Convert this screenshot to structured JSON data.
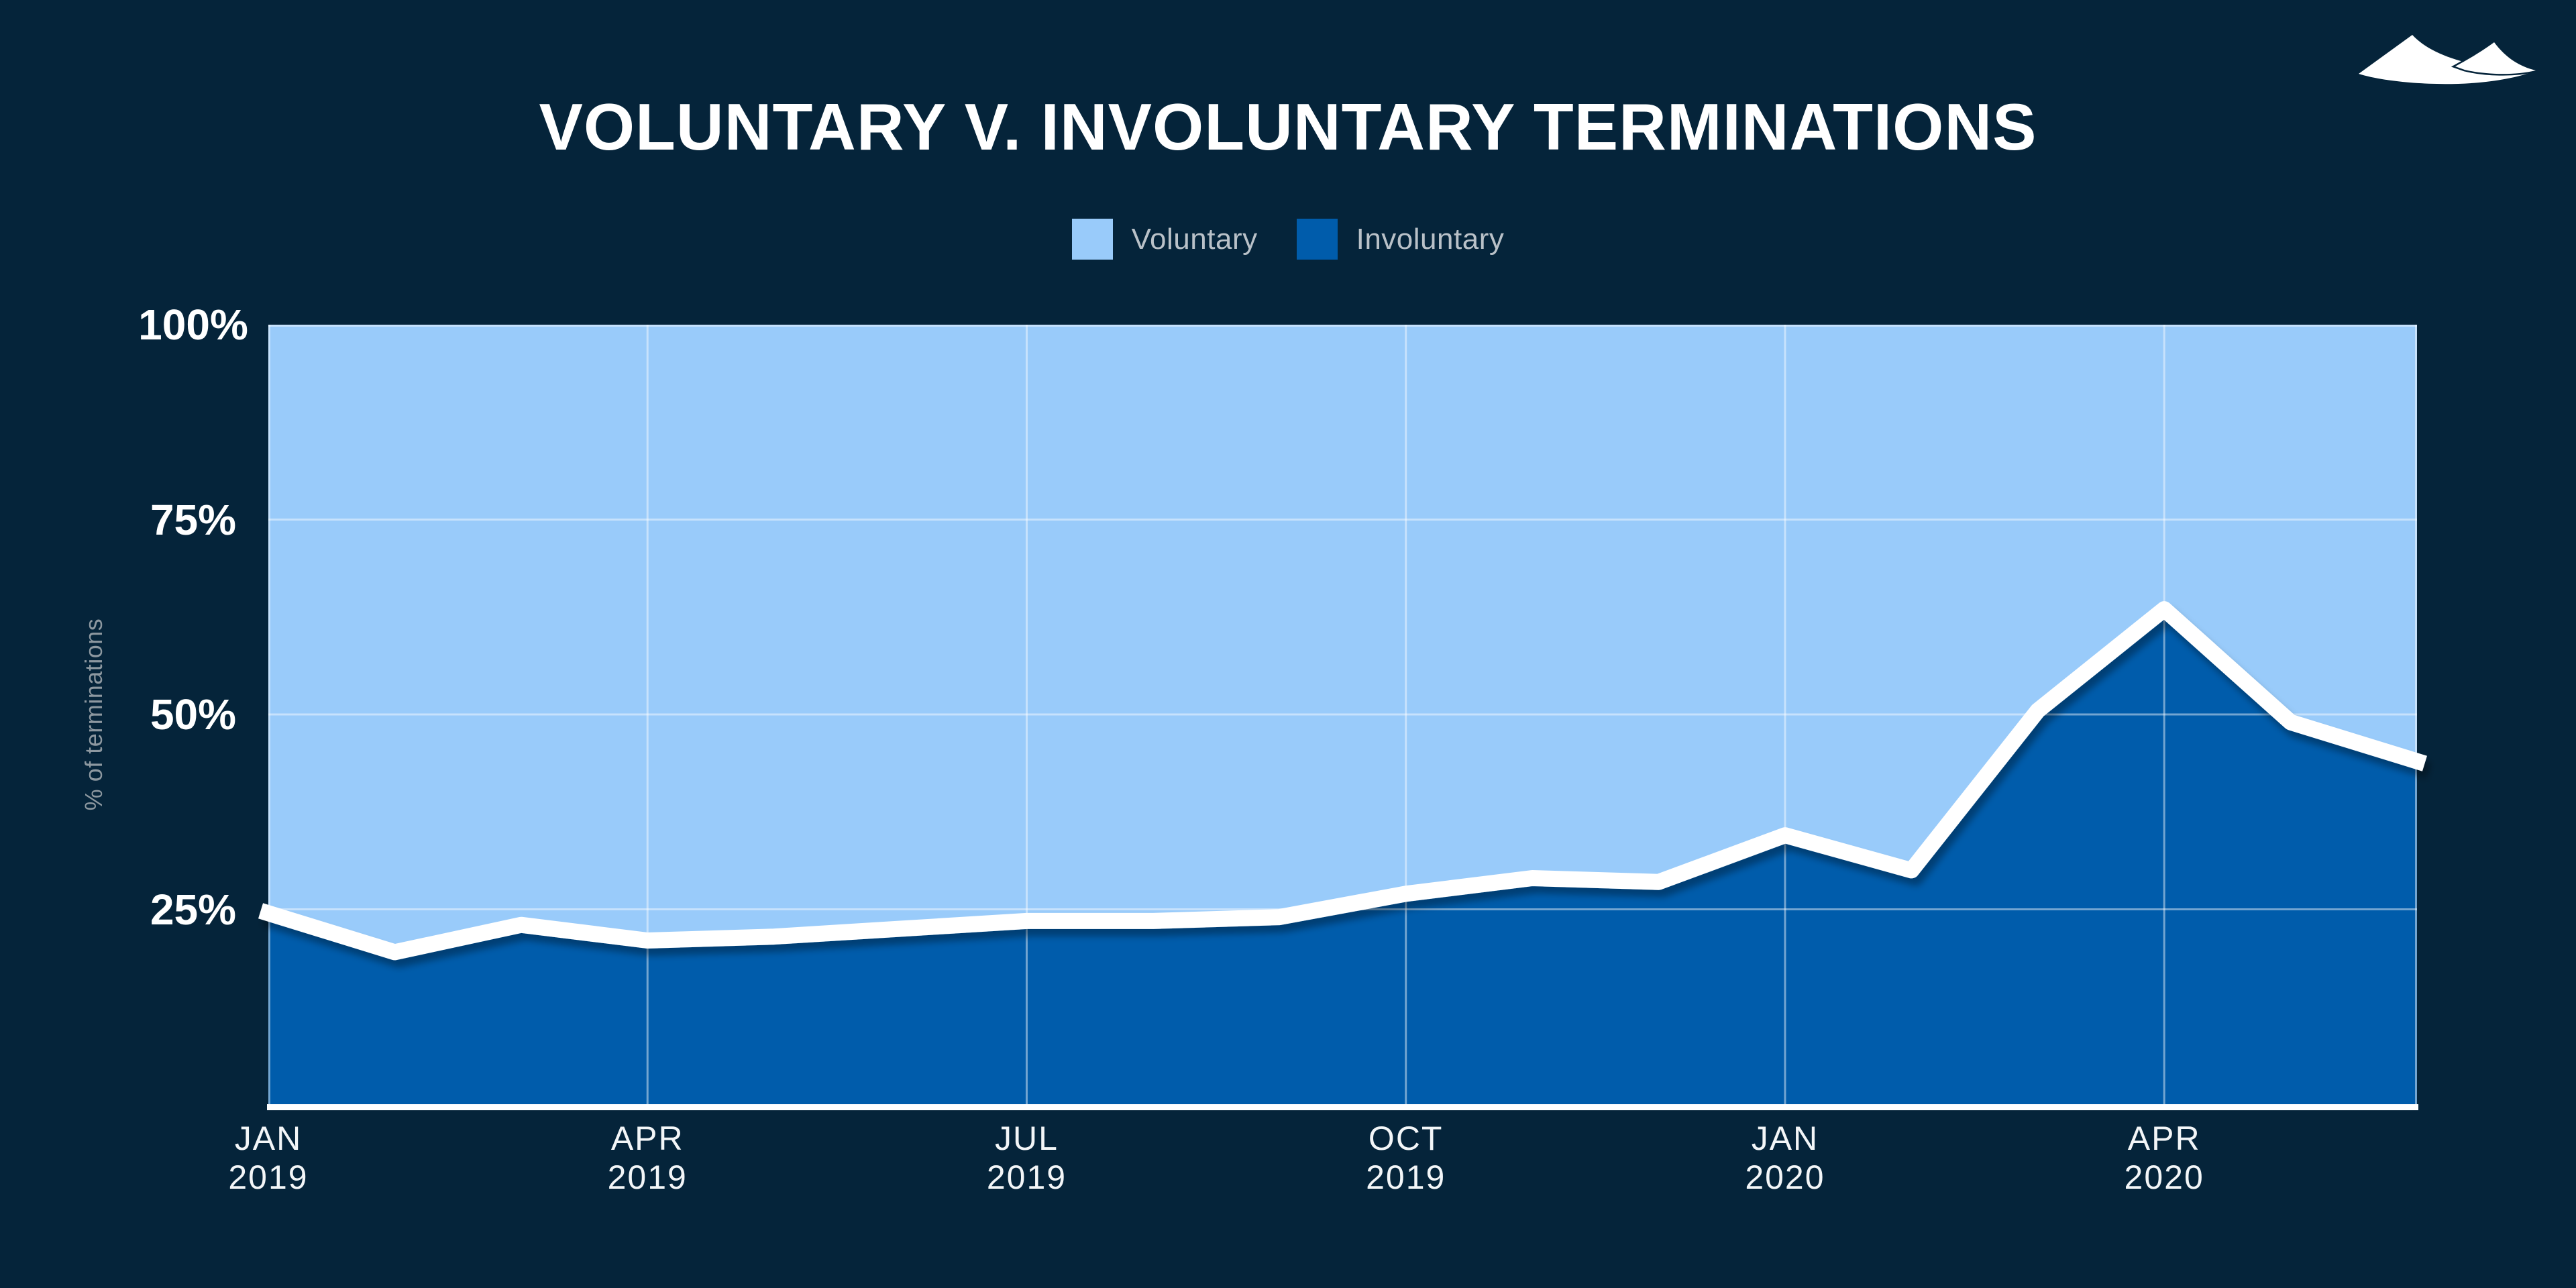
{
  "page": {
    "background": "#05243A"
  },
  "header": {
    "title": "VOLUNTARY V. INVOLUNTARY TERMINATIONS",
    "logo_icon": "two-mountains-icon",
    "logo_color": "#FFFFFF"
  },
  "legend": {
    "items": [
      {
        "label": "Voluntary",
        "color": "#99CBFA"
      },
      {
        "label": "Involuntary",
        "color": "#005CAB"
      }
    ],
    "text_color": "#B9C1C8"
  },
  "chart_data": {
    "type": "area",
    "stacked": true,
    "title": "VOLUNTARY V. INVOLUNTARY TERMINATIONS",
    "xlabel": "",
    "ylabel": "% of terminations",
    "ylim": [
      0,
      100
    ],
    "grid": true,
    "legend_position": "top",
    "x": [
      "Jan 2019",
      "Feb 2019",
      "Mar 2019",
      "Apr 2019",
      "May 2019",
      "Jun 2019",
      "Jul 2019",
      "Aug 2019",
      "Sep 2019",
      "Oct 2019",
      "Nov 2019",
      "Dec 2019",
      "Jan 2020",
      "Feb 2020",
      "Mar 2020",
      "Apr 2020",
      "May 2020",
      "Jun 2020"
    ],
    "series": [
      {
        "name": "Involuntary",
        "color": "#005CAB",
        "values": [
          24.5,
          19.5,
          23,
          21,
          21.5,
          22.5,
          23.5,
          23.5,
          24,
          27,
          29,
          28.5,
          34.5,
          30,
          50.5,
          63.5,
          49,
          44
        ]
      },
      {
        "name": "Voluntary",
        "color": "#99CBFA",
        "values": [
          75.5,
          80.5,
          77,
          79,
          78.5,
          77.5,
          76.5,
          76.5,
          76,
          73,
          71,
          71.5,
          65.5,
          70,
          49.5,
          36.5,
          51,
          56
        ]
      }
    ],
    "yticks": [
      {
        "value": 100,
        "label": "100%"
      },
      {
        "value": 75,
        "label": "75%"
      },
      {
        "value": 50,
        "label": "50%"
      },
      {
        "value": 25,
        "label": "25%"
      }
    ],
    "xticks": [
      {
        "index": 0,
        "line1": "JAN",
        "line2": "2019"
      },
      {
        "index": 3,
        "line1": "APR",
        "line2": "2019"
      },
      {
        "index": 6,
        "line1": "JUL",
        "line2": "2019"
      },
      {
        "index": 9,
        "line1": "OCT",
        "line2": "2019"
      },
      {
        "index": 12,
        "line1": "JAN",
        "line2": "2020"
      },
      {
        "index": 15,
        "line1": "APR",
        "line2": "2020"
      }
    ],
    "line_color": "#FFFFFF",
    "gridline_color": "rgba(255,255,255,0.45)",
    "axis_line_color": "#FFFFFF"
  }
}
